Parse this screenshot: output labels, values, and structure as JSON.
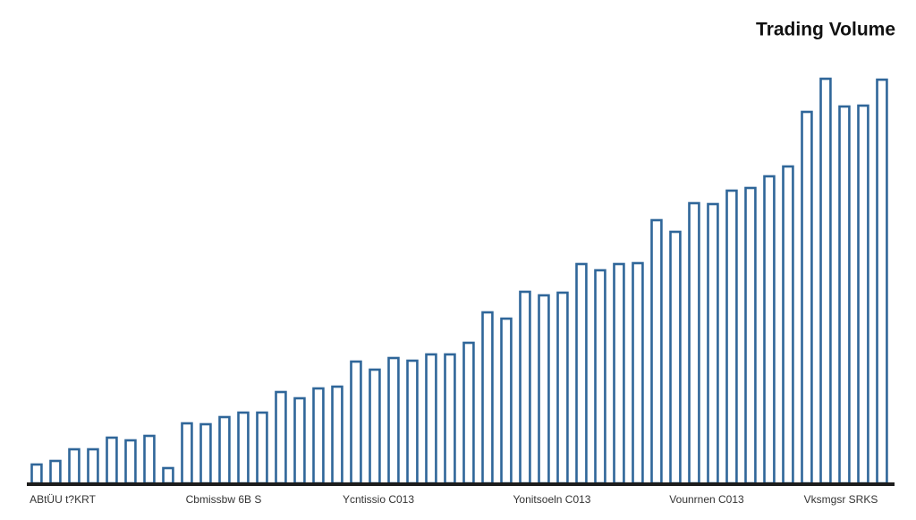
{
  "chart_data": {
    "type": "bar",
    "title": "Trading Volume",
    "values": [
      21,
      25,
      38,
      38,
      51,
      48,
      53,
      17,
      67,
      66,
      74,
      79,
      79,
      102,
      95,
      106,
      108,
      136,
      127,
      140,
      137,
      144,
      144,
      157,
      191,
      184,
      214,
      210,
      213,
      245,
      238,
      245,
      246,
      294,
      281,
      313,
      312,
      327,
      330,
      343,
      354,
      415,
      452,
      421,
      422,
      451
    ],
    "color": "#2f6699",
    "x_labels": [
      "ABtÜU t?KRT",
      "Cbmissbw 6B S",
      "Ycntissio C013",
      "Yonitsoeln C013",
      "Vounrnen C013",
      "Vksmgsr SRKS"
    ]
  }
}
